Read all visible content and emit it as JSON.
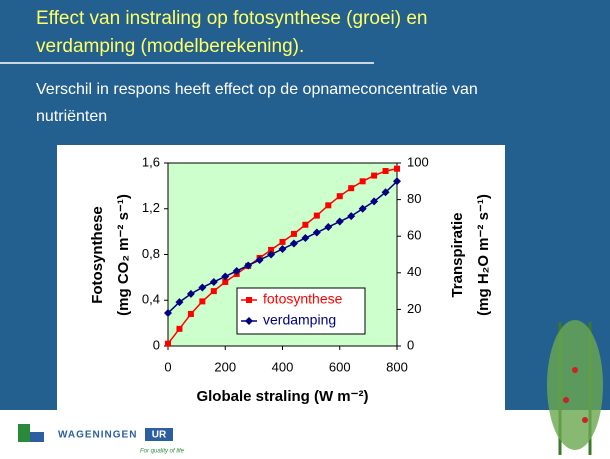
{
  "slide": {
    "title_lines": [
      "Effect van instraling op fotosynthese (groei) en",
      "verdamping (modelberekening)."
    ],
    "subtitle_lines": [
      "Verschil in respons heeft effect op de opnameconcentratie van",
      "nutriënten"
    ],
    "logo": {
      "name": "WAGENINGEN",
      "suffix": "UR",
      "tagline": "For quality of life"
    }
  },
  "chart_data": {
    "type": "line",
    "x_label": "Globale straling (W m⁻²)",
    "y_label_lines": [
      "Fotosynthese",
      "(mg CO₂ m⁻² s⁻¹)"
    ],
    "y2_label_lines": [
      "Transpiratie",
      "(mg H₂O m⁻² s⁻¹)"
    ],
    "x": [
      0,
      40,
      80,
      120,
      160,
      200,
      240,
      280,
      320,
      360,
      400,
      440,
      480,
      520,
      560,
      600,
      640,
      680,
      720,
      760,
      800
    ],
    "series": [
      {
        "name": "fotosynthese",
        "color": "#ff0000",
        "marker": "square",
        "values": [
          0.02,
          0.15,
          0.28,
          0.39,
          0.48,
          0.56,
          0.63,
          0.7,
          0.77,
          0.84,
          0.91,
          0.98,
          1.06,
          1.14,
          1.23,
          1.31,
          1.38,
          1.44,
          1.49,
          1.53,
          1.55
        ]
      },
      {
        "name": "verdamping",
        "color": "#000080",
        "marker": "diamond",
        "axis": "y2",
        "values": [
          18,
          24,
          28.5,
          32,
          35,
          38,
          41,
          44,
          47,
          50,
          53,
          56,
          59,
          62,
          65,
          68,
          71,
          75,
          79,
          84,
          90
        ]
      }
    ],
    "xlim": [
      0,
      800
    ],
    "xticks": [
      0,
      200,
      400,
      600,
      800
    ],
    "ylim": [
      0,
      1.6
    ],
    "yticks": [
      0,
      {
        "value": 0.4,
        "label": "0,4"
      },
      {
        "value": 0.8,
        "label": "0,8"
      },
      {
        "value": 1.2,
        "label": "1,2"
      },
      {
        "value": 1.6,
        "label": "1,6"
      }
    ],
    "y2lim": [
      0,
      100
    ],
    "y2ticks": [
      0,
      20,
      40,
      60,
      80,
      100
    ],
    "plot_background": "#ccffcc",
    "legend": "lower right"
  }
}
